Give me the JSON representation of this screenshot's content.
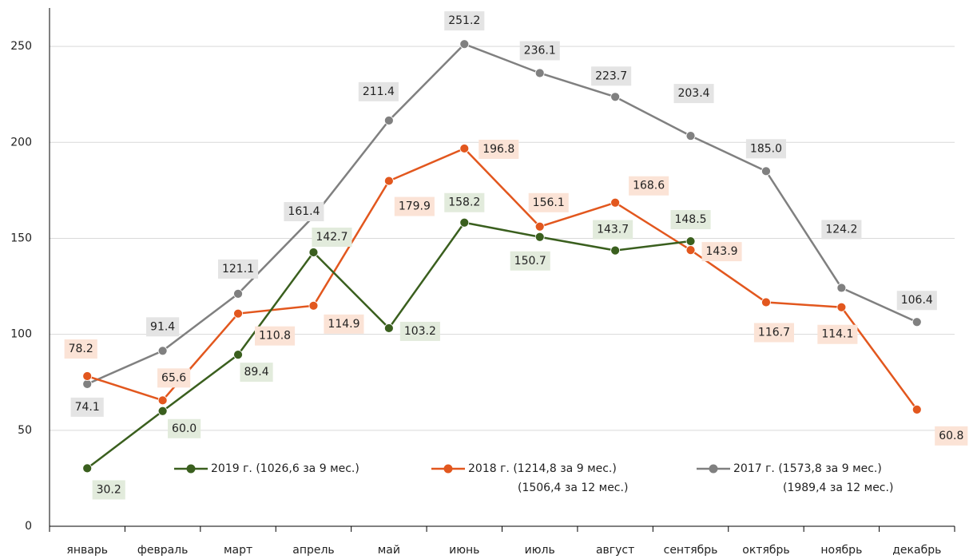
{
  "chart_data": {
    "type": "line",
    "categories": [
      "январь",
      "февраль",
      "март",
      "апрель",
      "май",
      "июнь",
      "июль",
      "август",
      "сентябрь",
      "октябрь",
      "ноябрь",
      "декабрь"
    ],
    "series": [
      {
        "name": "2019 г. (1026,6 за 9 мес.)",
        "color": "#3a5f1e",
        "label_color": "#375623",
        "label_bg": "#e2ebdc",
        "values": [
          30.2,
          60.0,
          89.4,
          142.7,
          103.2,
          158.2,
          150.7,
          143.7,
          148.5,
          null,
          null,
          null
        ],
        "value_labels": [
          "30.2",
          "60.0",
          "89.4",
          "142.7",
          "103.2",
          "158.2",
          "150.7",
          "143.7",
          "148.5",
          null,
          null,
          null
        ]
      },
      {
        "name": "2018 г. (1214,8 за 9 мес.)",
        "name_line2": "(1506,4 за 12 мес.)",
        "color": "#e2571e",
        "label_color": "#e2571e",
        "label_bg": "#fbe3d6",
        "values": [
          78.2,
          65.6,
          110.8,
          114.9,
          179.9,
          196.8,
          156.1,
          168.6,
          143.9,
          116.7,
          114.1,
          60.8
        ],
        "value_labels": [
          "78.2",
          "65.6",
          "110.8",
          "114.9",
          "179.9",
          "196.8",
          "156.1",
          "168.6",
          "143.9",
          "116.7",
          "114.1",
          "60.8"
        ]
      },
      {
        "name": "2017 г. (1573,8 за 9 мес.)",
        "name_line2": "(1989,4 за 12 мес.)",
        "color": "#808080",
        "label_color": "#222222",
        "label_bg": "#e4e4e4",
        "values": [
          74.1,
          91.4,
          121.1,
          161.4,
          211.4,
          251.2,
          236.1,
          223.7,
          203.4,
          185.0,
          124.2,
          106.4
        ],
        "value_labels": [
          "74.1",
          "91.4",
          "121.1",
          "161.4",
          "211.4",
          "251.2",
          "236.1",
          "223.7",
          "203.4",
          "185.0",
          "124.2",
          "106.4"
        ]
      }
    ],
    "ylim": [
      0,
      270
    ],
    "yticks": [
      0,
      50,
      100,
      150,
      200,
      250
    ],
    "grid": true
  }
}
